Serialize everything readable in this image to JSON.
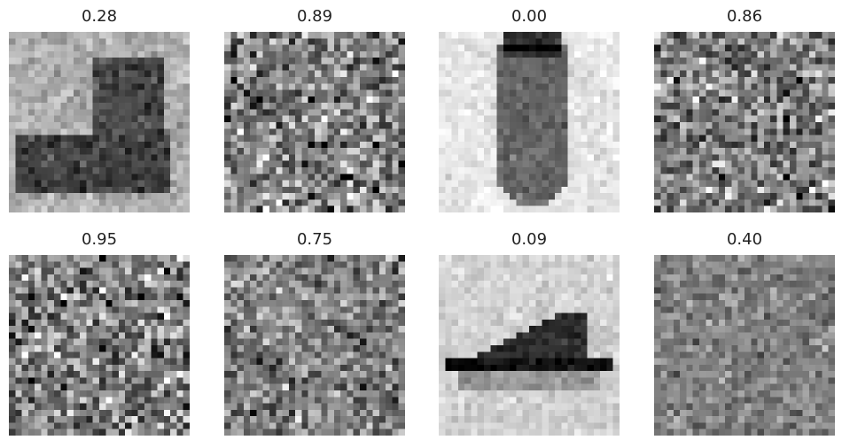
{
  "panels": [
    {
      "label": "0.28",
      "content": "boot"
    },
    {
      "label": "0.89",
      "content": "noise"
    },
    {
      "label": "0.00",
      "content": "bag"
    },
    {
      "label": "0.86",
      "content": "noise"
    },
    {
      "label": "0.95",
      "content": "noise"
    },
    {
      "label": "0.75",
      "content": "noise"
    },
    {
      "label": "0.09",
      "content": "sandal"
    },
    {
      "label": "0.40",
      "content": "noise"
    }
  ]
}
